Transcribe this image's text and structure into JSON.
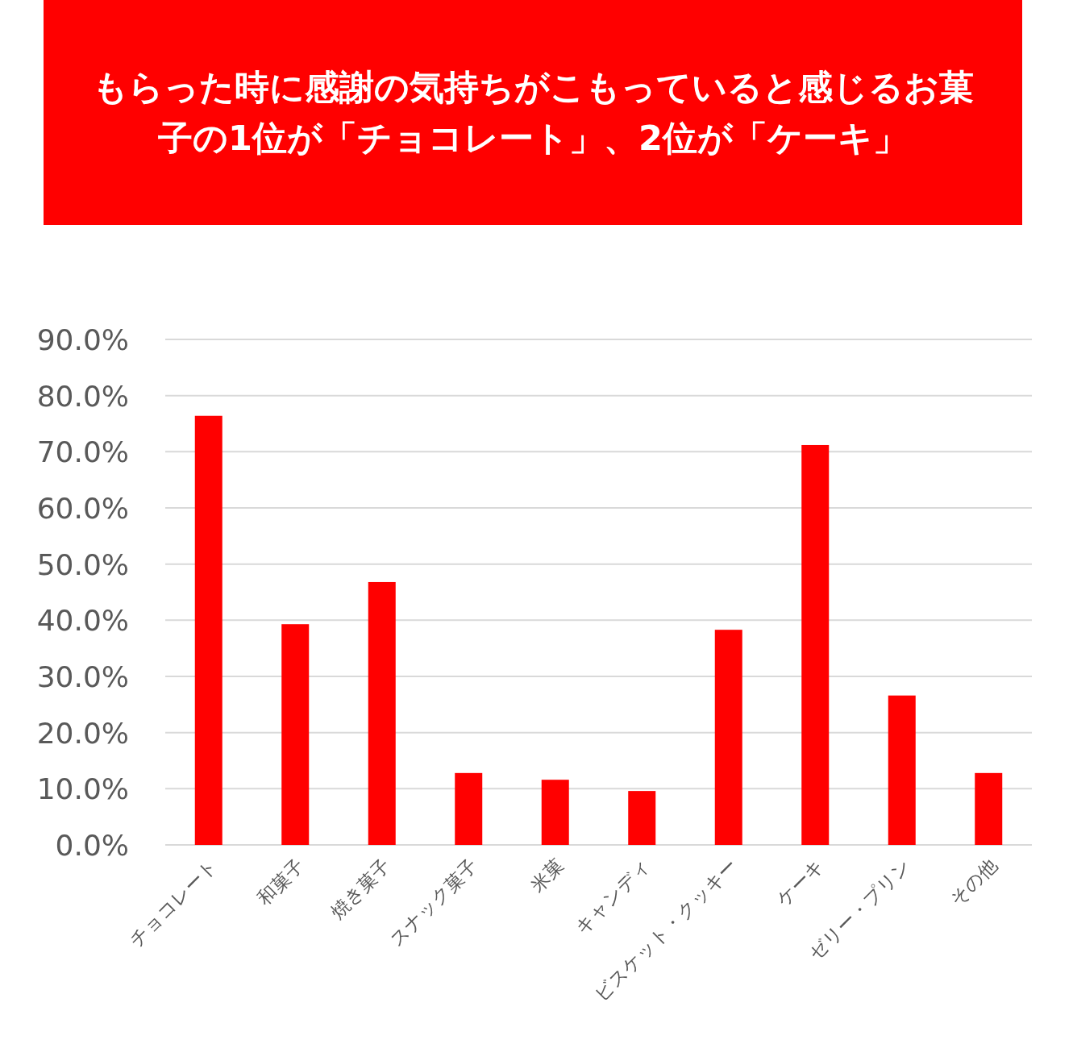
{
  "chart_data": {
    "type": "bar",
    "title": "もらった時に感謝の気持ちがこもっていると感じるお菓子の1位が「チョコレート」、2位が「ケーキ」",
    "categories": [
      "チョコレート",
      "和菓子",
      "焼き菓子",
      "スナック菓子",
      "米菓",
      "キャンディ",
      "ビスケット・クッキー",
      "ケーキ",
      "ゼリー・プリン",
      "その他"
    ],
    "values": [
      76.4,
      39.3,
      46.8,
      12.8,
      11.6,
      9.6,
      38.3,
      71.2,
      26.6,
      12.8
    ],
    "color": "#ff0000",
    "ylim": [
      0,
      90
    ],
    "yticks": [
      {
        "value": 0,
        "label": "0.0%"
      },
      {
        "value": 10,
        "label": "10.0%"
      },
      {
        "value": 20,
        "label": "20.0%"
      },
      {
        "value": 30,
        "label": "30.0%"
      },
      {
        "value": 40,
        "label": "40.0%"
      },
      {
        "value": 50,
        "label": "50.0%"
      },
      {
        "value": 60,
        "label": "60.0%"
      },
      {
        "value": 70,
        "label": "70.0%"
      },
      {
        "value": 80,
        "label": "80.0%"
      },
      {
        "value": 90,
        "label": "90.0%"
      }
    ],
    "grid": "y"
  }
}
